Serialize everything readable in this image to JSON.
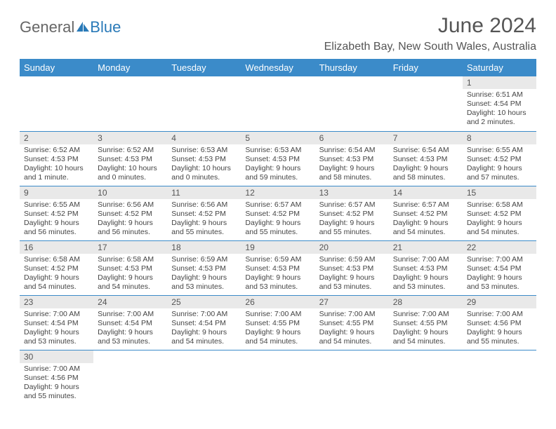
{
  "logo": {
    "general": "General",
    "blue": "Blue"
  },
  "title": "June 2024",
  "subtitle": "Elizabeth Bay, New South Wales, Australia",
  "colors": {
    "header_bg": "#3b8bc9",
    "header_text": "#ffffff",
    "daynum_bg": "#e9e9e9",
    "border": "#3b8bc9",
    "logo_gray": "#666666",
    "logo_blue": "#2a7ab8"
  },
  "weekdays": [
    "Sunday",
    "Monday",
    "Tuesday",
    "Wednesday",
    "Thursday",
    "Friday",
    "Saturday"
  ],
  "weeks": [
    [
      null,
      null,
      null,
      null,
      null,
      null,
      {
        "n": "1",
        "sunrise": "Sunrise: 6:51 AM",
        "sunset": "Sunset: 4:54 PM",
        "day1": "Daylight: 10 hours",
        "day2": "and 2 minutes."
      }
    ],
    [
      {
        "n": "2",
        "sunrise": "Sunrise: 6:52 AM",
        "sunset": "Sunset: 4:53 PM",
        "day1": "Daylight: 10 hours",
        "day2": "and 1 minute."
      },
      {
        "n": "3",
        "sunrise": "Sunrise: 6:52 AM",
        "sunset": "Sunset: 4:53 PM",
        "day1": "Daylight: 10 hours",
        "day2": "and 0 minutes."
      },
      {
        "n": "4",
        "sunrise": "Sunrise: 6:53 AM",
        "sunset": "Sunset: 4:53 PM",
        "day1": "Daylight: 10 hours",
        "day2": "and 0 minutes."
      },
      {
        "n": "5",
        "sunrise": "Sunrise: 6:53 AM",
        "sunset": "Sunset: 4:53 PM",
        "day1": "Daylight: 9 hours",
        "day2": "and 59 minutes."
      },
      {
        "n": "6",
        "sunrise": "Sunrise: 6:54 AM",
        "sunset": "Sunset: 4:53 PM",
        "day1": "Daylight: 9 hours",
        "day2": "and 58 minutes."
      },
      {
        "n": "7",
        "sunrise": "Sunrise: 6:54 AM",
        "sunset": "Sunset: 4:53 PM",
        "day1": "Daylight: 9 hours",
        "day2": "and 58 minutes."
      },
      {
        "n": "8",
        "sunrise": "Sunrise: 6:55 AM",
        "sunset": "Sunset: 4:52 PM",
        "day1": "Daylight: 9 hours",
        "day2": "and 57 minutes."
      }
    ],
    [
      {
        "n": "9",
        "sunrise": "Sunrise: 6:55 AM",
        "sunset": "Sunset: 4:52 PM",
        "day1": "Daylight: 9 hours",
        "day2": "and 56 minutes."
      },
      {
        "n": "10",
        "sunrise": "Sunrise: 6:56 AM",
        "sunset": "Sunset: 4:52 PM",
        "day1": "Daylight: 9 hours",
        "day2": "and 56 minutes."
      },
      {
        "n": "11",
        "sunrise": "Sunrise: 6:56 AM",
        "sunset": "Sunset: 4:52 PM",
        "day1": "Daylight: 9 hours",
        "day2": "and 55 minutes."
      },
      {
        "n": "12",
        "sunrise": "Sunrise: 6:57 AM",
        "sunset": "Sunset: 4:52 PM",
        "day1": "Daylight: 9 hours",
        "day2": "and 55 minutes."
      },
      {
        "n": "13",
        "sunrise": "Sunrise: 6:57 AM",
        "sunset": "Sunset: 4:52 PM",
        "day1": "Daylight: 9 hours",
        "day2": "and 55 minutes."
      },
      {
        "n": "14",
        "sunrise": "Sunrise: 6:57 AM",
        "sunset": "Sunset: 4:52 PM",
        "day1": "Daylight: 9 hours",
        "day2": "and 54 minutes."
      },
      {
        "n": "15",
        "sunrise": "Sunrise: 6:58 AM",
        "sunset": "Sunset: 4:52 PM",
        "day1": "Daylight: 9 hours",
        "day2": "and 54 minutes."
      }
    ],
    [
      {
        "n": "16",
        "sunrise": "Sunrise: 6:58 AM",
        "sunset": "Sunset: 4:52 PM",
        "day1": "Daylight: 9 hours",
        "day2": "and 54 minutes."
      },
      {
        "n": "17",
        "sunrise": "Sunrise: 6:58 AM",
        "sunset": "Sunset: 4:53 PM",
        "day1": "Daylight: 9 hours",
        "day2": "and 54 minutes."
      },
      {
        "n": "18",
        "sunrise": "Sunrise: 6:59 AM",
        "sunset": "Sunset: 4:53 PM",
        "day1": "Daylight: 9 hours",
        "day2": "and 53 minutes."
      },
      {
        "n": "19",
        "sunrise": "Sunrise: 6:59 AM",
        "sunset": "Sunset: 4:53 PM",
        "day1": "Daylight: 9 hours",
        "day2": "and 53 minutes."
      },
      {
        "n": "20",
        "sunrise": "Sunrise: 6:59 AM",
        "sunset": "Sunset: 4:53 PM",
        "day1": "Daylight: 9 hours",
        "day2": "and 53 minutes."
      },
      {
        "n": "21",
        "sunrise": "Sunrise: 7:00 AM",
        "sunset": "Sunset: 4:53 PM",
        "day1": "Daylight: 9 hours",
        "day2": "and 53 minutes."
      },
      {
        "n": "22",
        "sunrise": "Sunrise: 7:00 AM",
        "sunset": "Sunset: 4:54 PM",
        "day1": "Daylight: 9 hours",
        "day2": "and 53 minutes."
      }
    ],
    [
      {
        "n": "23",
        "sunrise": "Sunrise: 7:00 AM",
        "sunset": "Sunset: 4:54 PM",
        "day1": "Daylight: 9 hours",
        "day2": "and 53 minutes."
      },
      {
        "n": "24",
        "sunrise": "Sunrise: 7:00 AM",
        "sunset": "Sunset: 4:54 PM",
        "day1": "Daylight: 9 hours",
        "day2": "and 53 minutes."
      },
      {
        "n": "25",
        "sunrise": "Sunrise: 7:00 AM",
        "sunset": "Sunset: 4:54 PM",
        "day1": "Daylight: 9 hours",
        "day2": "and 54 minutes."
      },
      {
        "n": "26",
        "sunrise": "Sunrise: 7:00 AM",
        "sunset": "Sunset: 4:55 PM",
        "day1": "Daylight: 9 hours",
        "day2": "and 54 minutes."
      },
      {
        "n": "27",
        "sunrise": "Sunrise: 7:00 AM",
        "sunset": "Sunset: 4:55 PM",
        "day1": "Daylight: 9 hours",
        "day2": "and 54 minutes."
      },
      {
        "n": "28",
        "sunrise": "Sunrise: 7:00 AM",
        "sunset": "Sunset: 4:55 PM",
        "day1": "Daylight: 9 hours",
        "day2": "and 54 minutes."
      },
      {
        "n": "29",
        "sunrise": "Sunrise: 7:00 AM",
        "sunset": "Sunset: 4:56 PM",
        "day1": "Daylight: 9 hours",
        "day2": "and 55 minutes."
      }
    ],
    [
      {
        "n": "30",
        "sunrise": "Sunrise: 7:00 AM",
        "sunset": "Sunset: 4:56 PM",
        "day1": "Daylight: 9 hours",
        "day2": "and 55 minutes."
      },
      null,
      null,
      null,
      null,
      null,
      null
    ]
  ]
}
